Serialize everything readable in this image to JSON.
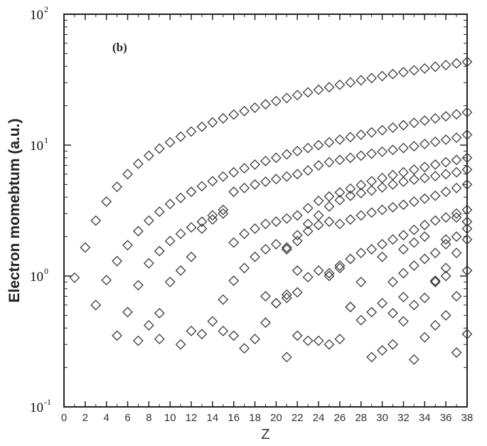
{
  "chart_data": {
    "type": "scatter",
    "panel_label": "(b)",
    "xlabel": "Z",
    "ylabel": "Electron momebtum (a.u.)",
    "xlim": [
      0,
      38
    ],
    "ylim": [
      0.1,
      100
    ],
    "yscale": "log",
    "grid": false,
    "marker": "diamond",
    "colors": {
      "marker": "#3a3a3a",
      "frame": "#222222"
    },
    "x_ticks": [
      "0",
      "2",
      "4",
      "6",
      "8",
      "10",
      "12",
      "14",
      "16",
      "18",
      "20",
      "22",
      "24",
      "26",
      "28",
      "30",
      "32",
      "34",
      "36",
      "38"
    ],
    "y_ticks": [
      {
        "base": "10",
        "exp": "-1"
      },
      {
        "base": "10",
        "exp": "0"
      },
      {
        "base": "10",
        "exp": "1"
      },
      {
        "base": "10",
        "exp": "2"
      }
    ],
    "series": [
      {
        "x": [
          1,
          2,
          3,
          4,
          5,
          6,
          7,
          8,
          9,
          10,
          11,
          12,
          13,
          14,
          15,
          16,
          17,
          18,
          19,
          20,
          21,
          22,
          23,
          24,
          25,
          26,
          27,
          28,
          29,
          30,
          31,
          32,
          33,
          34,
          35,
          36,
          37,
          38
        ],
        "y": [
          0.97,
          1.65,
          2.65,
          3.7,
          4.8,
          6.0,
          7.2,
          8.3,
          9.4,
          10.5,
          11.6,
          12.7,
          13.8,
          14.9,
          16.0,
          17.1,
          18.2,
          19.3,
          20.5,
          21.7,
          22.9,
          24.1,
          25.3,
          26.5,
          27.7,
          28.9,
          30.1,
          31.3,
          32.5,
          33.7,
          34.9,
          36.1,
          37.3,
          38.5,
          39.7,
          40.9,
          42.1,
          43.3
        ]
      },
      {
        "x": [
          3,
          4,
          5,
          6,
          7,
          8,
          9,
          10,
          11,
          12,
          13,
          14,
          15,
          16,
          17,
          18,
          19,
          20,
          21,
          22,
          23,
          24,
          25,
          26,
          27,
          28,
          29,
          30,
          31,
          32,
          33,
          34,
          35,
          36,
          37,
          38
        ],
        "y": [
          0.6,
          0.93,
          1.3,
          1.72,
          2.2,
          2.65,
          3.1,
          3.55,
          3.95,
          4.4,
          4.85,
          5.3,
          5.75,
          6.2,
          6.65,
          7.1,
          7.55,
          8.0,
          8.5,
          9.0,
          9.5,
          10.0,
          10.5,
          11.0,
          11.5,
          12.0,
          12.5,
          13.0,
          13.6,
          14.2,
          14.8,
          15.4,
          16.0,
          16.6,
          17.2,
          17.8
        ]
      },
      {
        "x": [
          6,
          7,
          8,
          9,
          10,
          11,
          12,
          13,
          14,
          15,
          16,
          17,
          18,
          19,
          20,
          21,
          22,
          23,
          24,
          25,
          26,
          27,
          28,
          29,
          30,
          31,
          32,
          33,
          34,
          35,
          36,
          37,
          38
        ],
        "y": [
          0.53,
          0.85,
          1.25,
          1.55,
          1.85,
          2.1,
          2.35,
          2.6,
          2.9,
          3.2,
          4.4,
          4.7,
          5.0,
          5.25,
          5.5,
          5.75,
          6.0,
          6.4,
          7.0,
          7.4,
          7.7,
          8.0,
          8.3,
          8.6,
          8.9,
          9.2,
          9.5,
          9.8,
          10.2,
          10.6,
          11.0,
          11.4,
          12.0
        ]
      },
      {
        "x": [
          5,
          7,
          8,
          9,
          10,
          11,
          12,
          13,
          14,
          15,
          16,
          17,
          18,
          19,
          20,
          21,
          22,
          23,
          24,
          25,
          26,
          27,
          28,
          29,
          30,
          31,
          32,
          33,
          34,
          35,
          36,
          37,
          38
        ],
        "y": [
          0.35,
          0.32,
          0.42,
          0.52,
          0.9,
          1.1,
          1.4,
          2.3,
          2.7,
          3.0,
          1.8,
          2.1,
          2.3,
          2.5,
          2.6,
          2.75,
          2.9,
          3.3,
          3.75,
          4.05,
          4.35,
          4.65,
          4.95,
          5.3,
          5.6,
          5.9,
          6.2,
          6.5,
          6.8,
          7.1,
          7.4,
          7.7,
          8.0
        ]
      },
      {
        "x": [
          9,
          11,
          12,
          13,
          14,
          15,
          16,
          17,
          18,
          19,
          20,
          21,
          22,
          23,
          24,
          25,
          26,
          27,
          28,
          29,
          30,
          31,
          32,
          33,
          34,
          35,
          36,
          37,
          38
        ],
        "y": [
          0.33,
          0.3,
          0.38,
          0.36,
          0.45,
          0.38,
          0.35,
          0.28,
          0.33,
          0.44,
          0.62,
          1.65,
          2.05,
          2.5,
          2.9,
          3.4,
          3.8,
          4.1,
          4.3,
          4.5,
          4.75,
          5.0,
          5.25,
          5.45,
          5.6,
          5.8,
          6.0,
          6.2,
          6.5
        ]
      },
      {
        "x": [
          15,
          16,
          17,
          18,
          19,
          20,
          21,
          22,
          23,
          24,
          25,
          26,
          27,
          28,
          29,
          30,
          31,
          32,
          33,
          34,
          35,
          36,
          37,
          38
        ],
        "y": [
          0.66,
          0.92,
          1.15,
          1.4,
          1.6,
          1.75,
          1.6,
          1.85,
          2.2,
          2.45,
          2.6,
          2.5,
          2.7,
          2.9,
          3.05,
          3.2,
          3.35,
          3.5,
          3.7,
          3.9,
          4.1,
          4.4,
          4.7,
          5.0
        ]
      },
      {
        "x": [
          19,
          20,
          21,
          22,
          23,
          24,
          25,
          26,
          27,
          28,
          29,
          30,
          31,
          32,
          33,
          34,
          35,
          36,
          37,
          38
        ],
        "y": [
          0.7,
          0.62,
          0.68,
          0.75,
          0.98,
          1.1,
          1.0,
          1.15,
          1.35,
          1.5,
          1.6,
          1.75,
          1.9,
          2.05,
          2.25,
          2.45,
          2.65,
          2.8,
          3.0,
          3.2
        ]
      },
      {
        "x": [
          21,
          22,
          23,
          24,
          25,
          26,
          27,
          28,
          29,
          30,
          31,
          32,
          33,
          34,
          35,
          36,
          37,
          38
        ],
        "y": [
          0.24,
          0.35,
          0.32,
          0.32,
          0.3,
          0.33,
          0.58,
          0.46,
          0.53,
          0.62,
          0.9,
          1.05,
          1.2,
          1.35,
          1.5,
          1.75,
          2.0,
          2.3
        ]
      },
      {
        "x": [
          21,
          22,
          25,
          26,
          27,
          28,
          29,
          30,
          31,
          32,
          33,
          34,
          35,
          36,
          37,
          38
        ],
        "y": [
          0.72,
          1.1,
          1.05,
          1.2,
          0.58,
          0.9,
          0.24,
          0.27,
          0.3,
          0.45,
          0.23,
          0.34,
          0.42,
          0.5,
          0.26,
          0.36
        ]
      },
      {
        "x": [
          30,
          31,
          32,
          33,
          34,
          35,
          36,
          37,
          38
        ],
        "y": [
          1.4,
          0.52,
          0.69,
          0.6,
          0.68,
          0.92,
          1.15,
          0.7,
          1.1
        ]
      },
      {
        "x": [
          32,
          33,
          34,
          35,
          36,
          37,
          38
        ],
        "y": [
          1.6,
          1.8,
          2.0,
          0.9,
          1.0,
          1.5,
          2.6
        ]
      },
      {
        "x": [
          36,
          37,
          38
        ],
        "y": [
          1.9,
          2.8,
          1.9
        ]
      }
    ]
  }
}
